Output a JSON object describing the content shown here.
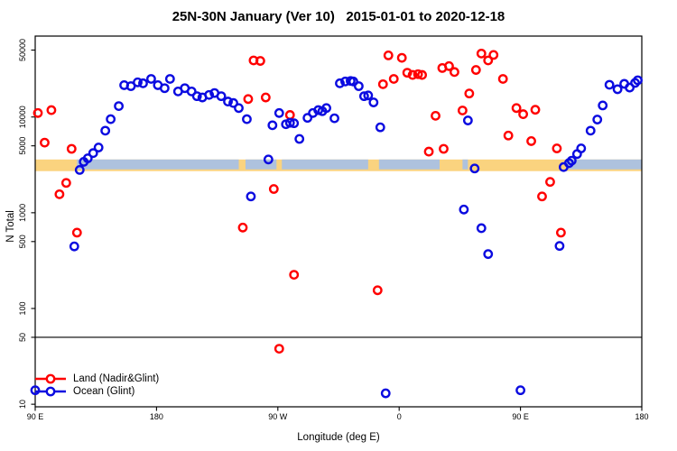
{
  "title": "25N-30N January (Ver 10)   2015-01-01 to 2020-12-18",
  "chart_data": {
    "type": "scatter",
    "title": "25N-30N January (Ver 10)   2015-01-01 to 2020-12-18",
    "xlabel": "Longitude (deg E)",
    "ylabel": "N Total",
    "x_axis": {
      "range": [
        90,
        540
      ],
      "ticks": [
        90,
        180,
        270,
        360,
        450,
        540
      ],
      "tick_labels": [
        "90 E",
        "180",
        "90 W",
        "0",
        "90 E",
        "180"
      ]
    },
    "y_axis": {
      "scale": "log",
      "range": [
        9.4,
        70000
      ],
      "ticks": [
        10,
        50,
        100,
        500,
        1000,
        5000,
        10000,
        50000
      ],
      "tick_labels": [
        "10",
        "50",
        "100",
        "500",
        "1000",
        "5000",
        "10000",
        "50000"
      ]
    },
    "reference_line_y": 50,
    "band": {
      "y_range": [
        2720,
        3600
      ],
      "land_color": "#fad37f",
      "ocean_color": "#aec2de",
      "ocean_segments": [
        [
          121,
          241
        ],
        [
          246,
          269
        ],
        [
          273,
          337
        ],
        [
          345,
          390
        ],
        [
          407,
          411
        ],
        [
          484,
          540
        ]
      ]
    },
    "legend_position": "bottom-left",
    "series": [
      {
        "name": "Land (Nadir&Glint)",
        "color": "#ff0000",
        "points": [
          [
            92,
            11000
          ],
          [
            97,
            5400
          ],
          [
            102,
            11800
          ],
          [
            108,
            1560
          ],
          [
            113,
            2050
          ],
          [
            117,
            4650
          ],
          [
            121,
            620
          ],
          [
            244,
            700
          ],
          [
            248,
            15400
          ],
          [
            252,
            39000
          ],
          [
            257,
            38500
          ],
          [
            261,
            16000
          ],
          [
            267,
            1770
          ],
          [
            271,
            38
          ],
          [
            279,
            10500
          ],
          [
            282,
            225
          ],
          [
            344,
            155
          ],
          [
            348,
            22000
          ],
          [
            352,
            44000
          ],
          [
            356,
            25000
          ],
          [
            362,
            41500
          ],
          [
            366,
            29000
          ],
          [
            370,
            27500
          ],
          [
            374,
            28000
          ],
          [
            377,
            27500
          ],
          [
            382,
            4350
          ],
          [
            387,
            10300
          ],
          [
            392,
            32500
          ],
          [
            393,
            4650
          ],
          [
            397,
            34000
          ],
          [
            401,
            29500
          ],
          [
            407,
            11700
          ],
          [
            412,
            17600
          ],
          [
            417,
            31000
          ],
          [
            421,
            46000
          ],
          [
            426,
            39000
          ],
          [
            430,
            44500
          ],
          [
            437,
            25000
          ],
          [
            441,
            6400
          ],
          [
            447,
            12400
          ],
          [
            452,
            10700
          ],
          [
            458,
            5600
          ],
          [
            461,
            11900
          ],
          [
            466,
            1480
          ],
          [
            472,
            2100
          ],
          [
            477,
            4700
          ],
          [
            480,
            620
          ]
        ]
      },
      {
        "name": "Ocean (Glint)",
        "color": "#0b0be0",
        "points": [
          [
            90,
            14
          ],
          [
            119,
            445
          ],
          [
            123,
            2800
          ],
          [
            126,
            3400
          ],
          [
            129,
            3700
          ],
          [
            133,
            4200
          ],
          [
            137,
            4800
          ],
          [
            142,
            7200
          ],
          [
            146,
            9500
          ],
          [
            152,
            13000
          ],
          [
            156,
            21500
          ],
          [
            161,
            21000
          ],
          [
            166,
            23000
          ],
          [
            170,
            22500
          ],
          [
            176,
            25000
          ],
          [
            181,
            21500
          ],
          [
            186,
            20000
          ],
          [
            190,
            25000
          ],
          [
            196,
            18500
          ],
          [
            201,
            20000
          ],
          [
            206,
            18500
          ],
          [
            210,
            16500
          ],
          [
            214,
            16000
          ],
          [
            219,
            17000
          ],
          [
            223,
            17800
          ],
          [
            228,
            16500
          ],
          [
            233,
            14500
          ],
          [
            237,
            14000
          ],
          [
            241,
            12400
          ],
          [
            247,
            9500
          ],
          [
            250,
            1480
          ],
          [
            263,
            3600
          ],
          [
            266,
            8200
          ],
          [
            271,
            11000
          ],
          [
            276,
            8400
          ],
          [
            279,
            8700
          ],
          [
            282,
            8600
          ],
          [
            286,
            5900
          ],
          [
            292,
            9800
          ],
          [
            296,
            11000
          ],
          [
            300,
            11800
          ],
          [
            303,
            11500
          ],
          [
            306,
            12400
          ],
          [
            312,
            9700
          ],
          [
            316,
            22500
          ],
          [
            320,
            23500
          ],
          [
            324,
            23800
          ],
          [
            326,
            23500
          ],
          [
            330,
            21000
          ],
          [
            334,
            16500
          ],
          [
            337,
            16800
          ],
          [
            341,
            14200
          ],
          [
            346,
            7800
          ],
          [
            350,
            13
          ],
          [
            408,
            1080
          ],
          [
            411,
            9200
          ],
          [
            416,
            2900
          ],
          [
            421,
            690
          ],
          [
            426,
            370
          ],
          [
            450,
            14
          ],
          [
            479,
            450
          ],
          [
            482,
            3000
          ],
          [
            486,
            3300
          ],
          [
            488,
            3500
          ],
          [
            492,
            4100
          ],
          [
            495,
            4700
          ],
          [
            502,
            7200
          ],
          [
            507,
            9400
          ],
          [
            511,
            13200
          ],
          [
            516,
            21700
          ],
          [
            522,
            19500
          ],
          [
            527,
            22200
          ],
          [
            531,
            20300
          ],
          [
            535,
            22700
          ],
          [
            537,
            24200
          ]
        ]
      }
    ]
  }
}
